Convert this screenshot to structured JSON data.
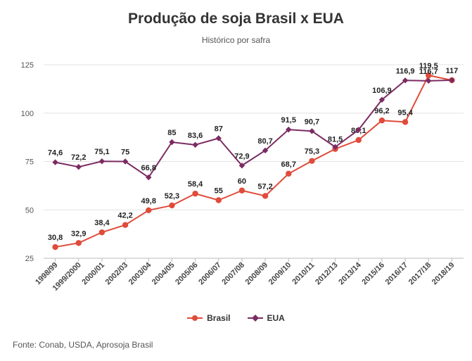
{
  "title": "Produção de soja Brasil x EUA",
  "subtitle": "Histórico por safra",
  "source": "Fonte: Conab, USDA, Aprosoja Brasil",
  "chart_data": {
    "type": "line",
    "categories": [
      "1998/99",
      "1999/2000",
      "2000/01",
      "2002/03",
      "2003/04",
      "2004/05",
      "2005/06",
      "2006/07",
      "2007/08",
      "2008/09",
      "2009/10",
      "2010/11",
      "2012/13",
      "2013/14",
      "2015/16",
      "2016/17",
      "2017/18",
      "2018/19"
    ],
    "series": [
      {
        "name": "Brasil",
        "color": "#e04b3a",
        "marker": "circle",
        "values": [
          30.8,
          32.9,
          38.4,
          42.2,
          49.8,
          52.3,
          58.4,
          55,
          60,
          57.2,
          68.7,
          75.3,
          81.5,
          86.1,
          96.2,
          95.4,
          119.5,
          117
        ],
        "labels": [
          "30,8",
          "32,9",
          "38,4",
          "42,2",
          "49,8",
          "52,3",
          "58,4",
          "55",
          "60",
          "57,2",
          "68,7",
          "75,3",
          "81,5",
          "86,1",
          "96,2",
          "95,4",
          "119,5",
          "117"
        ]
      },
      {
        "name": "EUA",
        "color": "#7b2c62",
        "marker": "diamond",
        "values": [
          74.6,
          72.2,
          75.1,
          75,
          66.8,
          85,
          83.6,
          87,
          72.9,
          80.7,
          91.5,
          90.7,
          82.5,
          91.4,
          106.9,
          116.9,
          116.7,
          117
        ],
        "labels": [
          "74,6",
          "72,2",
          "75,1",
          "75",
          "66,8",
          "85",
          "83,6",
          "87",
          "72,9",
          "80,7",
          "91,5",
          "90,7",
          "",
          "",
          "106,9",
          "116,9",
          "116,7",
          ""
        ]
      }
    ],
    "yticks": [
      "25",
      "50",
      "75",
      "100",
      "125"
    ],
    "ylim": [
      25,
      125
    ],
    "grid": true,
    "legend": "bottom"
  }
}
